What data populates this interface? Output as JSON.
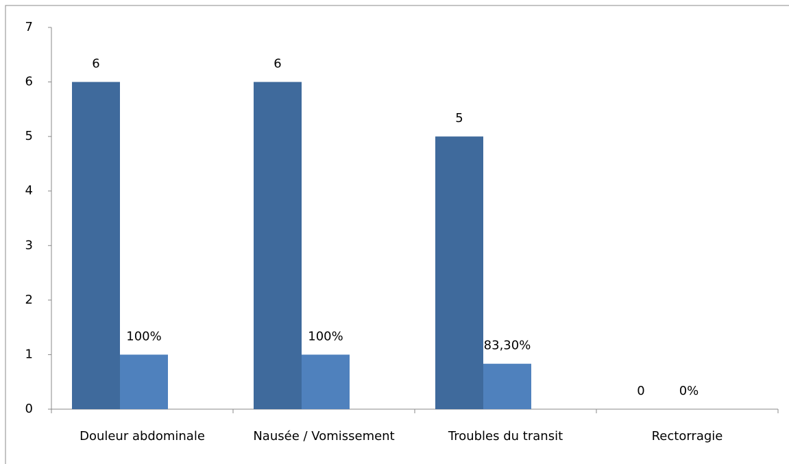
{
  "chart_data": {
    "type": "bar",
    "categories": [
      "Douleur abdominale",
      "Nausée / Vomissement",
      "Troubles du transit",
      "Rectorragie"
    ],
    "series": [
      {
        "color": "#3f6a9c",
        "values": [
          6,
          6,
          5,
          0
        ]
      },
      {
        "color": "#4f81bd",
        "values": [
          1,
          1,
          0.833,
          0
        ],
        "value_labels": [
          "100%",
          "100%",
          "83,30%",
          "0%"
        ]
      }
    ],
    "ylim": [
      0,
      7
    ],
    "yticks": [
      0,
      1,
      2,
      3,
      4,
      5,
      6,
      7
    ],
    "grid": false
  }
}
